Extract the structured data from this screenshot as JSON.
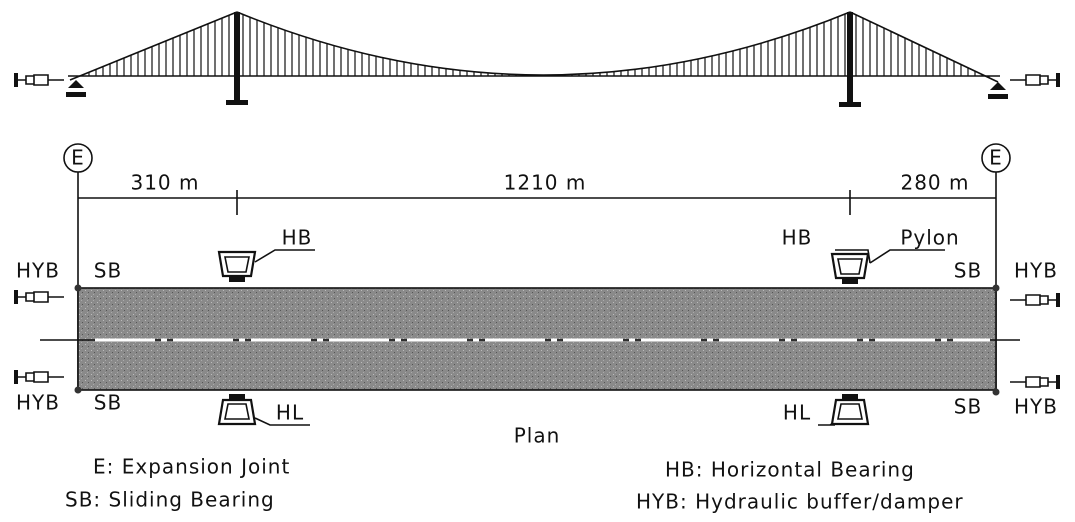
{
  "plan": {
    "title": "Plan",
    "expansion_joints": [
      "E",
      "E"
    ],
    "spans": [
      "310 m",
      "1210 m",
      "280 m"
    ],
    "horizontal_bearings": [
      "HB",
      "HB"
    ],
    "pylon": "Pylon",
    "lateral_bearings": [
      "HL",
      "HL"
    ],
    "sliding_bearings": [
      "SB",
      "SB",
      "SB",
      "SB"
    ],
    "buffers": [
      "HYB",
      "HYB",
      "HYB",
      "HYB"
    ]
  },
  "legend": [
    "E: Expansion Joint",
    "SB: Sliding Bearing",
    "HB: Horizontal Bearing",
    "HYB: Hydraulic buffer/damper"
  ]
}
